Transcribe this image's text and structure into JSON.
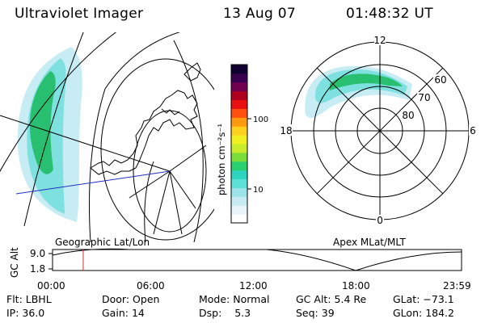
{
  "header": {
    "instrument": "Ultraviolet Imager",
    "date": "13 Aug 07",
    "time": "01:48:32 UT"
  },
  "colorbar": {
    "label": "photon cm⁻²s⁻¹",
    "ticks": [
      "100",
      "10"
    ],
    "colors": [
      "#ffffff",
      "#e8f4fa",
      "#c8eaf2",
      "#9fe3ea",
      "#5fe0d8",
      "#2fd4c0",
      "#28d070",
      "#7cdc3c",
      "#c8ec2c",
      "#f0f020",
      "#ffd020",
      "#ff9a10",
      "#ff5010",
      "#e81010",
      "#b00020",
      "#700050",
      "#3a0050",
      "#100030"
    ]
  },
  "left_map": {
    "label": "Geographic Lat/Lon",
    "aurora_colors": [
      "#28c070",
      "#7fe0e0",
      "#c8ecf4"
    ]
  },
  "polar_plot": {
    "label": "Apex MLat/MLT",
    "mlt_labels": [
      "12",
      "18",
      "6",
      "0"
    ],
    "lat_labels": [
      "60",
      "70",
      "80"
    ]
  },
  "altitude_plot": {
    "axis_label": "GC Alt",
    "yticks": [
      "9.0",
      "1.8"
    ],
    "xticks": [
      "00:00",
      "06:00",
      "12:00",
      "18:00",
      "23:59"
    ],
    "current_time_fraction": 0.075,
    "marker_color": "#d03030"
  },
  "info": [
    {
      "label": "Flt:",
      "value": "LBHL"
    },
    {
      "label": "Door:",
      "value": "Open"
    },
    {
      "label": "Mode:",
      "value": "Normal"
    },
    {
      "label": "GC Alt:",
      "value": "5.4 Re"
    },
    {
      "label": "GLat:",
      "value": "−73.1"
    },
    {
      "label": "IP:",
      "value": "36.0"
    },
    {
      "label": "Gain:",
      "value": "14"
    },
    {
      "label": "Dsp:",
      "value": "5.3"
    },
    {
      "label": "Seq:",
      "value": "39"
    },
    {
      "label": "GLon:",
      "value": "184.2"
    }
  ]
}
